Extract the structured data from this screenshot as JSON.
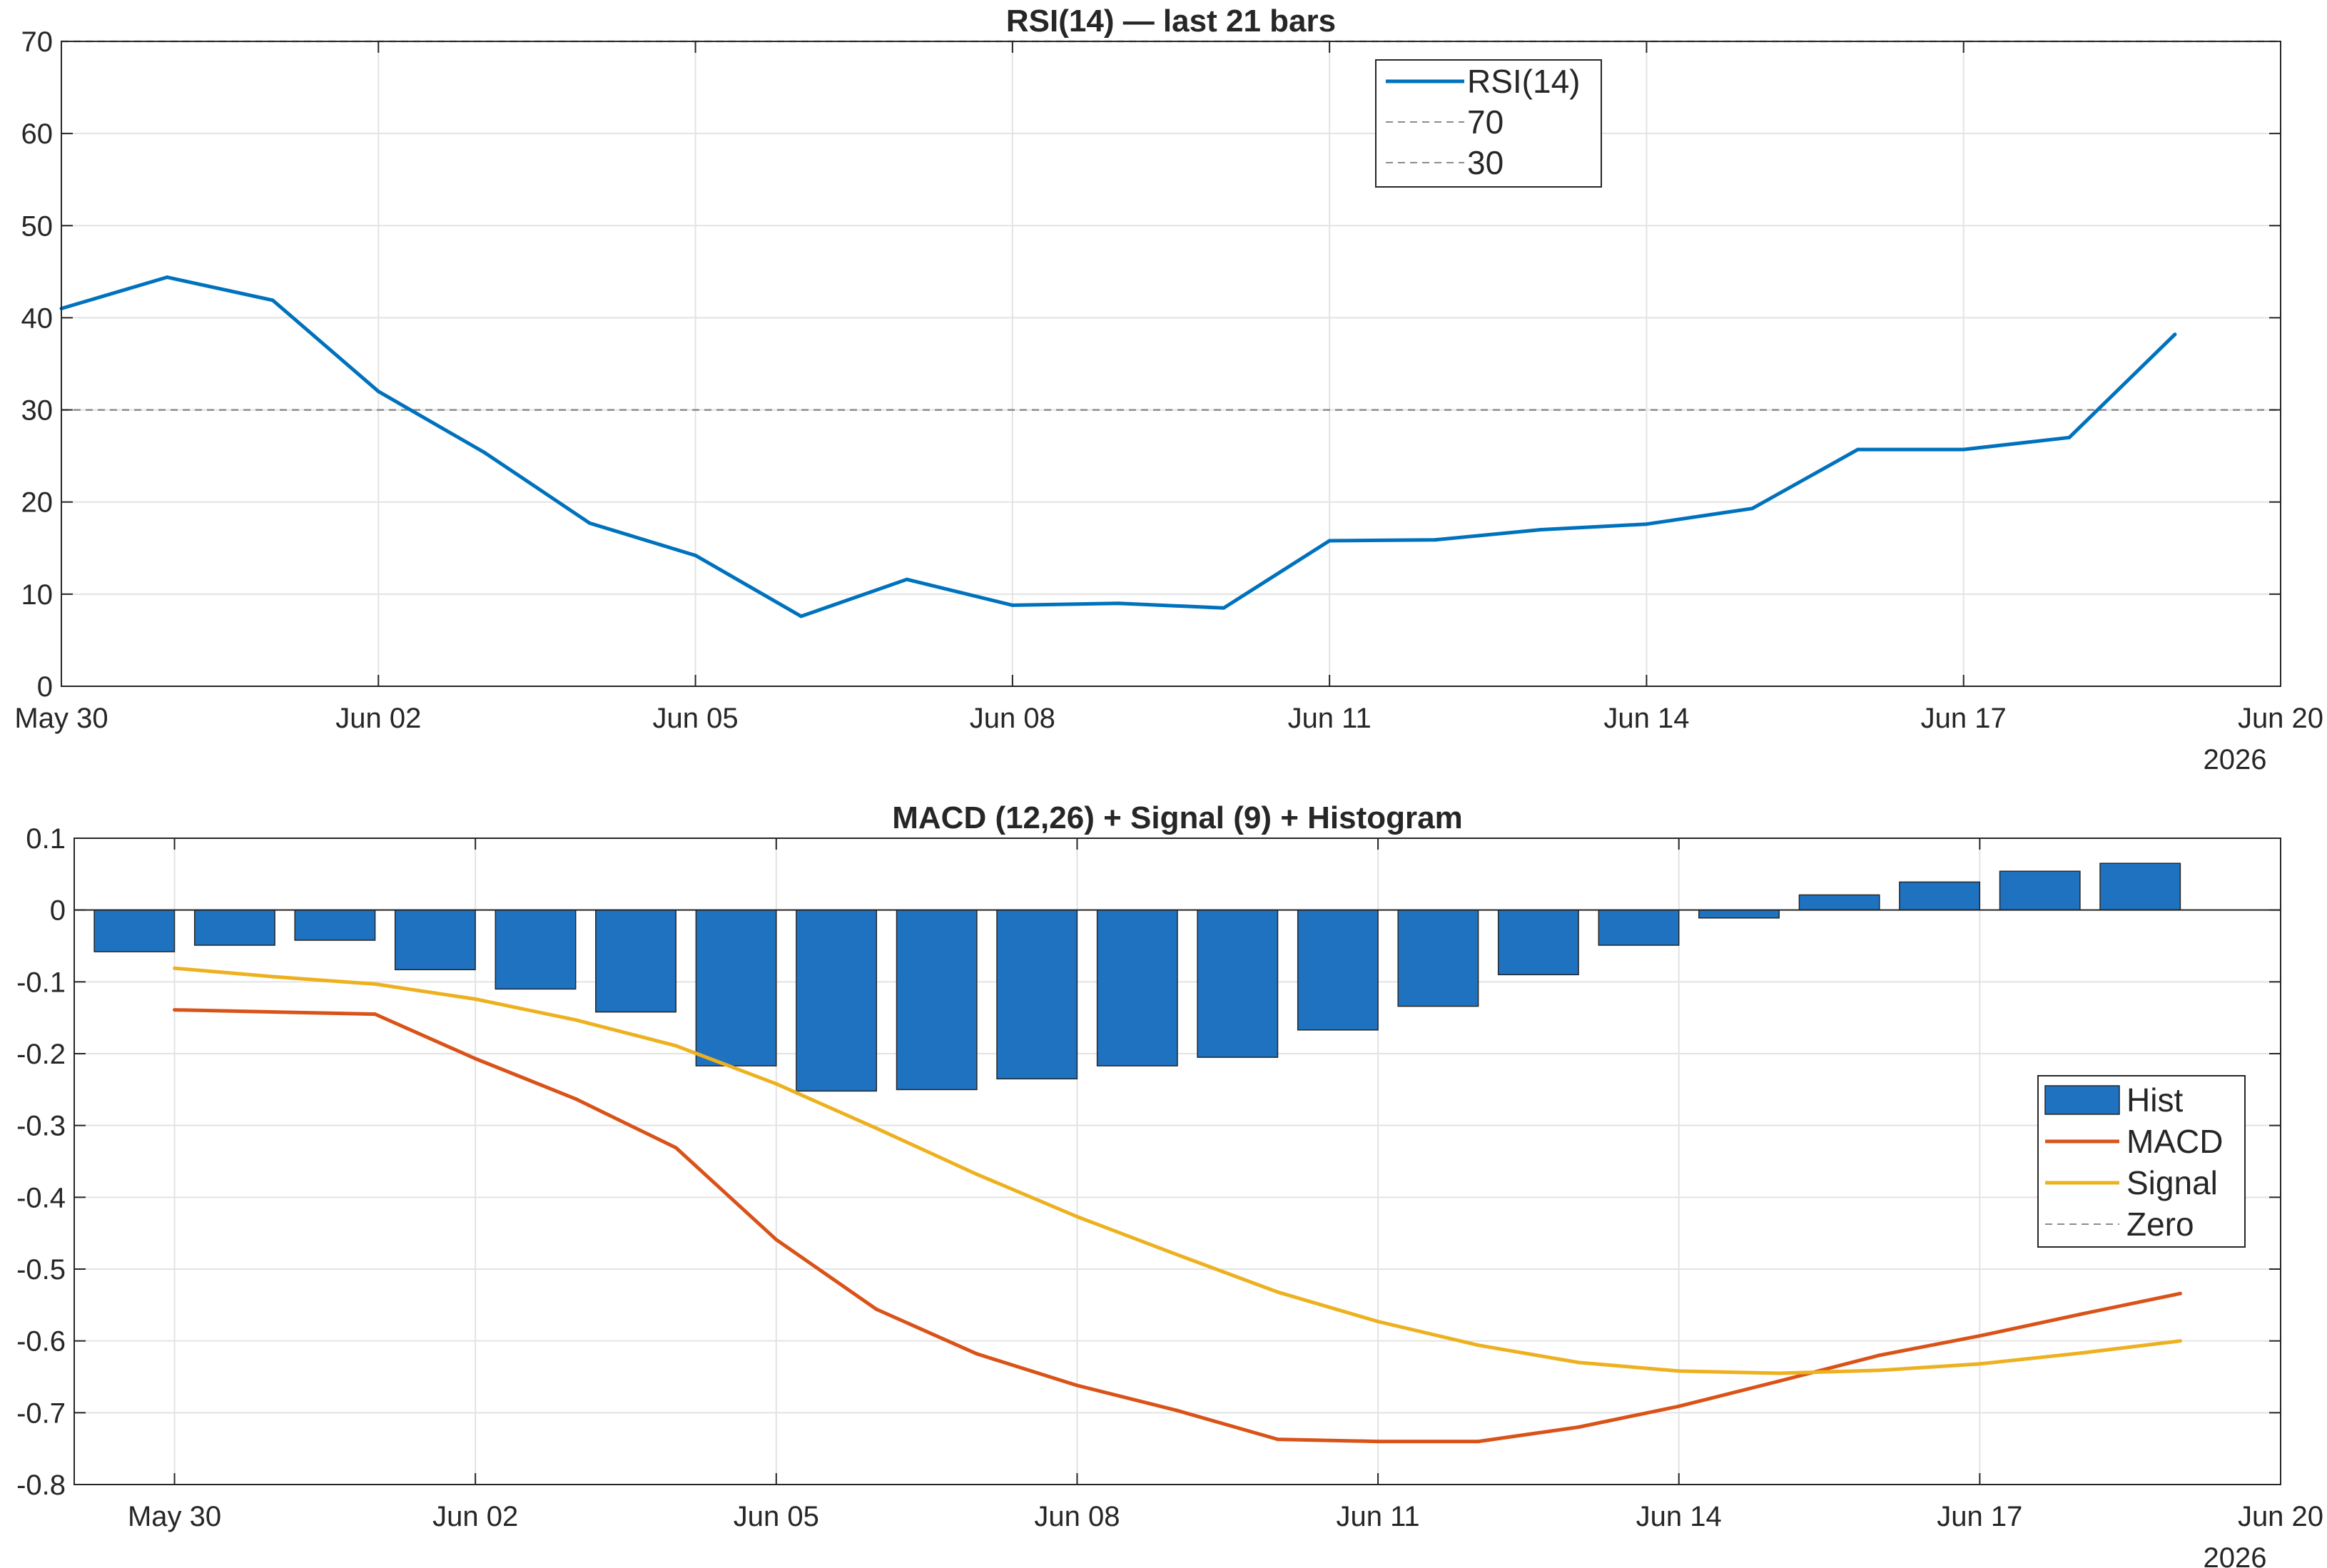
{
  "colors": {
    "rsi": "#0072BD",
    "macd": "#D95319",
    "signal": "#EDB120",
    "hist": "#1F72C0",
    "ref": "#8C8C8C",
    "grid": "#E3E3E3",
    "axis": "#262626"
  },
  "chart_data": [
    {
      "type": "line",
      "title": "RSI(14) — last 21 bars",
      "xlim": [
        "2026-05-30",
        "2026-06-20"
      ],
      "ylim": [
        0,
        70
      ],
      "yticks": [
        "0",
        "10",
        "20",
        "30",
        "40",
        "50",
        "60",
        "70"
      ],
      "xticks": [
        "May 30",
        "Jun 02",
        "Jun 05",
        "Jun 08",
        "Jun 11",
        "Jun 14",
        "Jun 17",
        "Jun 20"
      ],
      "year_label": "2026",
      "grid": true,
      "legend_position": "top-center",
      "x": [
        "2026-05-30",
        "2026-05-31",
        "2026-06-01",
        "2026-06-02",
        "2026-06-03",
        "2026-06-04",
        "2026-06-05",
        "2026-06-06",
        "2026-06-07",
        "2026-06-08",
        "2026-06-09",
        "2026-06-10",
        "2026-06-11",
        "2026-06-12",
        "2026-06-13",
        "2026-06-14",
        "2026-06-15",
        "2026-06-16",
        "2026-06-17",
        "2026-06-18",
        "2026-06-19"
      ],
      "series": [
        {
          "name": "RSI(14)",
          "style": "solid",
          "values": [
            41.0,
            44.4,
            41.9,
            32.0,
            25.4,
            17.7,
            14.2,
            7.6,
            11.6,
            8.8,
            9.0,
            8.5,
            15.8,
            15.9,
            17.0,
            17.6,
            19.3,
            25.7,
            25.7,
            27.0,
            38.2
          ]
        },
        {
          "name": "70",
          "style": "dashed",
          "constant": 70
        },
        {
          "name": "30",
          "style": "dashed",
          "constant": 30
        }
      ]
    },
    {
      "type": "bar",
      "title": "MACD (12,26) + Signal (9) + Histogram",
      "xlim": [
        "2026-05-29",
        "2026-06-20"
      ],
      "ylim": [
        -0.8,
        0.1
      ],
      "yticks": [
        "0.1",
        "0",
        "-0.1",
        "-0.2",
        "-0.3",
        "-0.4",
        "-0.5",
        "-0.6",
        "-0.7",
        "-0.8"
      ],
      "xticks": [
        "May 30",
        "Jun 02",
        "Jun 05",
        "Jun 08",
        "Jun 11",
        "Jun 14",
        "Jun 17",
        "Jun 20"
      ],
      "year_label": "2026",
      "grid": true,
      "legend_position": "right",
      "x": [
        "2026-05-30",
        "2026-05-31",
        "2026-06-01",
        "2026-06-02",
        "2026-06-03",
        "2026-06-04",
        "2026-06-05",
        "2026-06-06",
        "2026-06-07",
        "2026-06-08",
        "2026-06-09",
        "2026-06-10",
        "2026-06-11",
        "2026-06-12",
        "2026-06-13",
        "2026-06-14",
        "2026-06-15",
        "2026-06-16",
        "2026-06-17",
        "2026-06-18",
        "2026-06-19"
      ],
      "series": [
        {
          "name": "Hist",
          "kind": "bar",
          "values": [
            -0.058,
            -0.049,
            -0.042,
            -0.083,
            -0.11,
            -0.142,
            -0.217,
            -0.252,
            -0.25,
            -0.235,
            -0.217,
            -0.205,
            -0.167,
            -0.134,
            -0.09,
            -0.049,
            -0.011,
            0.021,
            0.039,
            0.054,
            0.065
          ]
        },
        {
          "name": "MACD",
          "kind": "line",
          "values": [
            -0.139,
            -0.142,
            -0.145,
            -0.207,
            -0.263,
            -0.331,
            -0.459,
            -0.556,
            -0.618,
            -0.662,
            -0.697,
            -0.737,
            -0.74,
            -0.74,
            -0.72,
            -0.691,
            -0.656,
            -0.62,
            -0.593,
            -0.563,
            -0.534
          ]
        },
        {
          "name": "Signal",
          "kind": "line",
          "values": [
            -0.081,
            -0.093,
            -0.103,
            -0.124,
            -0.153,
            -0.189,
            -0.242,
            -0.304,
            -0.368,
            -0.427,
            -0.48,
            -0.532,
            -0.573,
            -0.606,
            -0.63,
            -0.642,
            -0.645,
            -0.641,
            -0.632,
            -0.617,
            -0.6
          ]
        },
        {
          "name": "Zero",
          "kind": "ref",
          "style": "dashed",
          "constant": 0
        }
      ]
    }
  ]
}
